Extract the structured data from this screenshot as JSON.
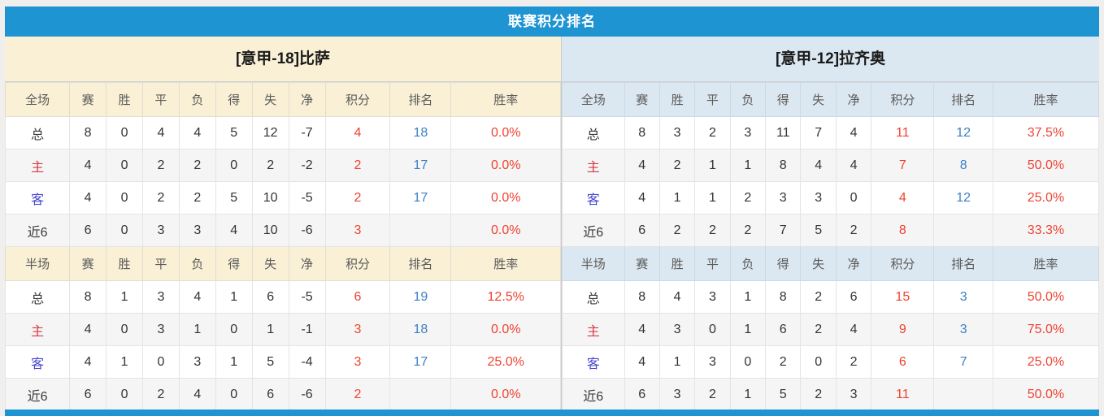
{
  "page": {
    "title": "联赛积分排名"
  },
  "theme": {
    "accent": "#1e94d2",
    "page_bg": "#f0efed",
    "cream_header": "#faf0d6",
    "blue_header": "#dce8f1",
    "alt_row": "#f5f5f5",
    "red_number": "#ee4231",
    "blue_number": "#3e80c4",
    "home_label": "#d33b45",
    "away_label": "#4747cf"
  },
  "teams": [
    {
      "id": "pisa",
      "title": "[意甲-18]比萨",
      "sections": [
        {
          "header": [
            "全场",
            "赛",
            "胜",
            "平",
            "负",
            "得",
            "失",
            "净",
            "积分",
            "排名",
            "胜率"
          ],
          "rows": [
            {
              "label": "总",
              "type": "total",
              "stats": [
                "8",
                "0",
                "4",
                "4",
                "5",
                "12",
                "-7"
              ],
              "points": "4",
              "rank": "18",
              "rate": "0.0%"
            },
            {
              "label": "主",
              "type": "home",
              "stats": [
                "4",
                "0",
                "2",
                "2",
                "0",
                "2",
                "-2"
              ],
              "points": "2",
              "rank": "17",
              "rate": "0.0%"
            },
            {
              "label": "客",
              "type": "away",
              "stats": [
                "4",
                "0",
                "2",
                "2",
                "5",
                "10",
                "-5"
              ],
              "points": "2",
              "rank": "17",
              "rate": "0.0%"
            },
            {
              "label": "近6",
              "type": "recent",
              "stats": [
                "6",
                "0",
                "3",
                "3",
                "4",
                "10",
                "-6"
              ],
              "points": "3",
              "rank": "",
              "rate": "0.0%"
            }
          ]
        },
        {
          "header": [
            "半场",
            "赛",
            "胜",
            "平",
            "负",
            "得",
            "失",
            "净",
            "积分",
            "排名",
            "胜率"
          ],
          "rows": [
            {
              "label": "总",
              "type": "total",
              "stats": [
                "8",
                "1",
                "3",
                "4",
                "1",
                "6",
                "-5"
              ],
              "points": "6",
              "rank": "19",
              "rate": "12.5%"
            },
            {
              "label": "主",
              "type": "home",
              "stats": [
                "4",
                "0",
                "3",
                "1",
                "0",
                "1",
                "-1"
              ],
              "points": "3",
              "rank": "18",
              "rate": "0.0%"
            },
            {
              "label": "客",
              "type": "away",
              "stats": [
                "4",
                "1",
                "0",
                "3",
                "1",
                "5",
                "-4"
              ],
              "points": "3",
              "rank": "17",
              "rate": "25.0%"
            },
            {
              "label": "近6",
              "type": "recent",
              "stats": [
                "6",
                "0",
                "2",
                "4",
                "0",
                "6",
                "-6"
              ],
              "points": "2",
              "rank": "",
              "rate": "0.0%"
            }
          ]
        }
      ]
    },
    {
      "id": "lazio",
      "title": "[意甲-12]拉齐奥",
      "sections": [
        {
          "header": [
            "全场",
            "赛",
            "胜",
            "平",
            "负",
            "得",
            "失",
            "净",
            "积分",
            "排名",
            "胜率"
          ],
          "rows": [
            {
              "label": "总",
              "type": "total",
              "stats": [
                "8",
                "3",
                "2",
                "3",
                "11",
                "7",
                "4"
              ],
              "points": "11",
              "rank": "12",
              "rate": "37.5%"
            },
            {
              "label": "主",
              "type": "home",
              "stats": [
                "4",
                "2",
                "1",
                "1",
                "8",
                "4",
                "4"
              ],
              "points": "7",
              "rank": "8",
              "rate": "50.0%"
            },
            {
              "label": "客",
              "type": "away",
              "stats": [
                "4",
                "1",
                "1",
                "2",
                "3",
                "3",
                "0"
              ],
              "points": "4",
              "rank": "12",
              "rate": "25.0%"
            },
            {
              "label": "近6",
              "type": "recent",
              "stats": [
                "6",
                "2",
                "2",
                "2",
                "7",
                "5",
                "2"
              ],
              "points": "8",
              "rank": "",
              "rate": "33.3%"
            }
          ]
        },
        {
          "header": [
            "半场",
            "赛",
            "胜",
            "平",
            "负",
            "得",
            "失",
            "净",
            "积分",
            "排名",
            "胜率"
          ],
          "rows": [
            {
              "label": "总",
              "type": "total",
              "stats": [
                "8",
                "4",
                "3",
                "1",
                "8",
                "2",
                "6"
              ],
              "points": "15",
              "rank": "3",
              "rate": "50.0%"
            },
            {
              "label": "主",
              "type": "home",
              "stats": [
                "4",
                "3",
                "0",
                "1",
                "6",
                "2",
                "4"
              ],
              "points": "9",
              "rank": "3",
              "rate": "75.0%"
            },
            {
              "label": "客",
              "type": "away",
              "stats": [
                "4",
                "1",
                "3",
                "0",
                "2",
                "0",
                "2"
              ],
              "points": "6",
              "rank": "7",
              "rate": "25.0%"
            },
            {
              "label": "近6",
              "type": "recent",
              "stats": [
                "6",
                "3",
                "2",
                "1",
                "5",
                "2",
                "3"
              ],
              "points": "11",
              "rank": "",
              "rate": "50.0%"
            }
          ]
        }
      ]
    }
  ]
}
